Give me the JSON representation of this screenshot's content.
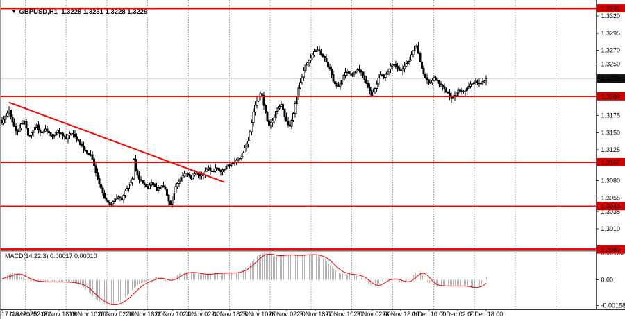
{
  "window": {
    "collapse_icon": "▼",
    "title_text": "GBPUSD,H1  1.3228 1.3231 1.3228 1.3229",
    "symbol": "GBPUSD",
    "timeframe": "H1",
    "quote_open": "1.3228",
    "quote_high": "1.3231",
    "quote_low": "1.3228",
    "quote_close": "1.3229"
  },
  "colors": {
    "background": "#ffffff",
    "level_line_red": "#ff0000",
    "price_box_red": "#d40000",
    "current_price_box_black": "#111111",
    "box_text_white": "#ffffff",
    "macd_histogram_gray": "#b4b4b4",
    "macd_signal_red": "#f01010",
    "grid_gray": "#999999",
    "bid_line_gray": "#b4b4b4",
    "candle_black": "#000000",
    "candle_white": "#ffffff",
    "separator_gray": "#707070",
    "frame_dark": "#333333"
  },
  "chart_data": [
    {
      "type": "candlestick",
      "title": "GBPUSD,H1",
      "symbol": "GBPUSD",
      "timeframe": "H1",
      "current_bid": 1.3229,
      "current_bar_ohlc": [
        1.3228,
        1.3231,
        1.3228,
        1.3229
      ],
      "ylim": [
        1.2975,
        1.3335
      ],
      "grid": "vertical-dashed-day-separators",
      "price_axis_labels": [
        1.332,
        1.3295,
        1.327,
        1.325,
        1.3175,
        1.315,
        1.3125,
        1.308,
        1.3055,
        1.3035,
        1.301
      ],
      "price_boxes": [
        {
          "value": 1.3331,
          "style": "red"
        },
        {
          "value": 1.3229,
          "style": "black"
        },
        {
          "value": 1.3203,
          "style": "red"
        },
        {
          "value": 1.3107,
          "style": "red"
        },
        {
          "value": 1.3043,
          "style": "red"
        },
        {
          "value": 1.298,
          "style": "red"
        }
      ],
      "horizontal_levels": [
        {
          "price": 1.3331,
          "weight": 2.4
        },
        {
          "price": 1.3203,
          "weight": 2.0
        },
        {
          "price": 1.3107,
          "weight": 1.8
        },
        {
          "price": 1.3043,
          "weight": 1.5
        },
        {
          "price": 1.298,
          "weight": 2.8
        }
      ],
      "trendline": {
        "from": {
          "x": 12,
          "price": 1.3194
        },
        "to": {
          "x": 322,
          "price": 1.3078
        }
      },
      "time_axis_labels": [
        "17 Nov 2025",
        "18 Nov 02:00",
        "18 Nov 18:00",
        "19 Nov 10:00",
        "20 Nov 02:00",
        "20 Nov 18:00",
        "21 Nov 10:00",
        "24 Nov 02:00",
        "24 Nov 18:00",
        "25 Nov 10:00",
        "26 Nov 02:00",
        "26 Nov 18:00",
        "27 Nov 10:00",
        "28 Nov 02:00",
        "28 Nov 18:00",
        "1 Dec 10:00",
        "2 Dec 02:00",
        "2 Dec 18:00"
      ],
      "close_path": [
        [
          2,
          1.3165
        ],
        [
          8,
          1.3175
        ],
        [
          12,
          1.3183
        ],
        [
          16,
          1.317
        ],
        [
          20,
          1.3158
        ],
        [
          24,
          1.315
        ],
        [
          28,
          1.316
        ],
        [
          34,
          1.3168
        ],
        [
          40,
          1.3145
        ],
        [
          46,
          1.3152
        ],
        [
          52,
          1.316
        ],
        [
          58,
          1.3148
        ],
        [
          64,
          1.3155
        ],
        [
          70,
          1.3148
        ],
        [
          76,
          1.3145
        ],
        [
          82,
          1.3152
        ],
        [
          88,
          1.3148
        ],
        [
          94,
          1.3142
        ],
        [
          100,
          1.315
        ],
        [
          106,
          1.3146
        ],
        [
          112,
          1.3138
        ],
        [
          118,
          1.3128
        ],
        [
          124,
          1.312
        ],
        [
          130,
          1.3118
        ],
        [
          136,
          1.3095
        ],
        [
          142,
          1.3075
        ],
        [
          148,
          1.3058
        ],
        [
          153,
          1.3048
        ],
        [
          158,
          1.3044
        ],
        [
          164,
          1.3052
        ],
        [
          170,
          1.3058
        ],
        [
          175,
          1.3052
        ],
        [
          180,
          1.3068
        ],
        [
          186,
          1.3076
        ],
        [
          190,
          1.3085
        ],
        [
          192,
          1.3112
        ],
        [
          195,
          1.309
        ],
        [
          200,
          1.3082
        ],
        [
          206,
          1.3076
        ],
        [
          212,
          1.307
        ],
        [
          218,
          1.3078
        ],
        [
          224,
          1.3066
        ],
        [
          230,
          1.3072
        ],
        [
          236,
          1.307
        ],
        [
          241,
          1.3052
        ],
        [
          245,
          1.3044
        ],
        [
          250,
          1.3066
        ],
        [
          256,
          1.308
        ],
        [
          262,
          1.3088
        ],
        [
          268,
          1.309
        ],
        [
          274,
          1.3083
        ],
        [
          280,
          1.3092
        ],
        [
          286,
          1.3086
        ],
        [
          292,
          1.309
        ],
        [
          298,
          1.31
        ],
        [
          304,
          1.3092
        ],
        [
          310,
          1.3099
        ],
        [
          316,
          1.3094
        ],
        [
          322,
          1.3097
        ],
        [
          328,
          1.3103
        ],
        [
          334,
          1.3106
        ],
        [
          340,
          1.311
        ],
        [
          346,
          1.3114
        ],
        [
          352,
          1.3128
        ],
        [
          358,
          1.3142
        ],
        [
          364,
          1.318
        ],
        [
          370,
          1.32
        ],
        [
          376,
          1.3208
        ],
        [
          380,
          1.3186
        ],
        [
          386,
          1.316
        ],
        [
          392,
          1.3168
        ],
        [
          398,
          1.3184
        ],
        [
          404,
          1.3192
        ],
        [
          410,
          1.3172
        ],
        [
          416,
          1.3155
        ],
        [
          422,
          1.318
        ],
        [
          428,
          1.321
        ],
        [
          434,
          1.3232
        ],
        [
          440,
          1.325
        ],
        [
          448,
          1.3262
        ],
        [
          456,
          1.3272
        ],
        [
          462,
          1.3265
        ],
        [
          468,
          1.3256
        ],
        [
          474,
          1.3242
        ],
        [
          480,
          1.3222
        ],
        [
          486,
          1.3216
        ],
        [
          492,
          1.3228
        ],
        [
          498,
          1.324
        ],
        [
          506,
          1.3235
        ],
        [
          514,
          1.3243
        ],
        [
          522,
          1.3234
        ],
        [
          528,
          1.3218
        ],
        [
          534,
          1.3205
        ],
        [
          540,
          1.3216
        ],
        [
          546,
          1.3235
        ],
        [
          552,
          1.323
        ],
        [
          558,
          1.3243
        ],
        [
          564,
          1.325
        ],
        [
          570,
          1.3246
        ],
        [
          576,
          1.324
        ],
        [
          582,
          1.3247
        ],
        [
          588,
          1.3254
        ],
        [
          594,
          1.327
        ],
        [
          598,
          1.3281
        ],
        [
          602,
          1.3262
        ],
        [
          606,
          1.3244
        ],
        [
          612,
          1.3228
        ],
        [
          618,
          1.3222
        ],
        [
          624,
          1.323
        ],
        [
          630,
          1.3224
        ],
        [
          636,
          1.3217
        ],
        [
          642,
          1.321
        ],
        [
          648,
          1.32
        ],
        [
          654,
          1.3206
        ],
        [
          660,
          1.3214
        ],
        [
          666,
          1.3208
        ],
        [
          672,
          1.3217
        ],
        [
          678,
          1.3222
        ],
        [
          684,
          1.3226
        ],
        [
          690,
          1.3221
        ],
        [
          699,
          1.3229
        ]
      ]
    },
    {
      "type": "bar",
      "indicator": "MACD",
      "params": "(14,22,3)",
      "label": "MACD(14,22,3) 0.00017 0.00010",
      "readings": [
        "0.00017",
        "0.00010"
      ],
      "ylim": [
        -0.00158,
        0.00166
      ],
      "axis_labels": [
        {
          "text": "0.00166",
          "value": 0.00166
        },
        {
          "text": "0.00",
          "value": 0.0
        },
        {
          "text": "-0.00158",
          "value": -0.00158
        }
      ],
      "values_path": [
        [
          2,
          6e-05
        ],
        [
          10,
          0.00028
        ],
        [
          18,
          0.00044
        ],
        [
          26,
          0.0003
        ],
        [
          34,
          8e-05
        ],
        [
          42,
          -6e-05
        ],
        [
          52,
          -0.0001
        ],
        [
          62,
          -0.00013
        ],
        [
          74,
          -0.00012
        ],
        [
          86,
          -0.00013
        ],
        [
          98,
          -0.00016
        ],
        [
          108,
          -0.00022
        ],
        [
          116,
          -0.00035
        ],
        [
          124,
          -0.00065
        ],
        [
          132,
          -0.001
        ],
        [
          140,
          -0.00128
        ],
        [
          148,
          -0.00148
        ],
        [
          156,
          -0.00158
        ],
        [
          164,
          -0.0015
        ],
        [
          172,
          -0.00132
        ],
        [
          180,
          -0.00105
        ],
        [
          188,
          -0.00068
        ],
        [
          196,
          -0.00035
        ],
        [
          204,
          -0.00015
        ],
        [
          212,
          -6e-05
        ],
        [
          220,
          0.00012
        ],
        [
          226,
          0.00016
        ],
        [
          232,
          2e-05
        ],
        [
          238,
          -0.00012
        ],
        [
          244,
          -2e-05
        ],
        [
          252,
          0.00025
        ],
        [
          260,
          0.00042
        ],
        [
          268,
          0.00048
        ],
        [
          276,
          0.00044
        ],
        [
          284,
          0.00036
        ],
        [
          292,
          0.00032
        ],
        [
          300,
          0.00036
        ],
        [
          308,
          0.0004
        ],
        [
          316,
          0.00042
        ],
        [
          324,
          0.00041
        ],
        [
          332,
          0.00042
        ],
        [
          340,
          0.00046
        ],
        [
          348,
          0.0006
        ],
        [
          356,
          0.0009
        ],
        [
          364,
          0.00125
        ],
        [
          372,
          0.00155
        ],
        [
          380,
          0.00166
        ],
        [
          388,
          0.0015
        ],
        [
          396,
          0.00145
        ],
        [
          404,
          0.00152
        ],
        [
          412,
          0.00155
        ],
        [
          420,
          0.00148
        ],
        [
          428,
          0.0015
        ],
        [
          436,
          0.00154
        ],
        [
          444,
          0.00157
        ],
        [
          452,
          0.00152
        ],
        [
          460,
          0.00143
        ],
        [
          468,
          0.0012
        ],
        [
          474,
          0.0009
        ],
        [
          480,
          0.00062
        ],
        [
          488,
          0.00042
        ],
        [
          496,
          0.00036
        ],
        [
          504,
          0.00032
        ],
        [
          512,
          0.00028
        ],
        [
          518,
          0.00016
        ],
        [
          524,
          -4e-05
        ],
        [
          530,
          -0.00028
        ],
        [
          536,
          -0.00046
        ],
        [
          542,
          -0.00032
        ],
        [
          548,
          -8e-05
        ],
        [
          554,
          4e-05
        ],
        [
          560,
          8e-05
        ],
        [
          566,
          6e-05
        ],
        [
          572,
          -4e-05
        ],
        [
          578,
          -0.00022
        ],
        [
          584,
          -0.00014
        ],
        [
          590,
          0.00012
        ],
        [
          596,
          0.00042
        ],
        [
          602,
          0.00055
        ],
        [
          608,
          0.00028
        ],
        [
          614,
          -0.00012
        ],
        [
          620,
          -0.00032
        ],
        [
          628,
          -0.00038
        ],
        [
          636,
          -0.00036
        ],
        [
          644,
          -0.0004
        ],
        [
          652,
          -0.00038
        ],
        [
          660,
          -0.00036
        ],
        [
          668,
          -0.00042
        ],
        [
          676,
          -0.00048
        ],
        [
          682,
          -0.0005
        ],
        [
          688,
          -0.00038
        ],
        [
          694,
          -0.00015
        ],
        [
          699,
          0.00017
        ]
      ]
    }
  ]
}
